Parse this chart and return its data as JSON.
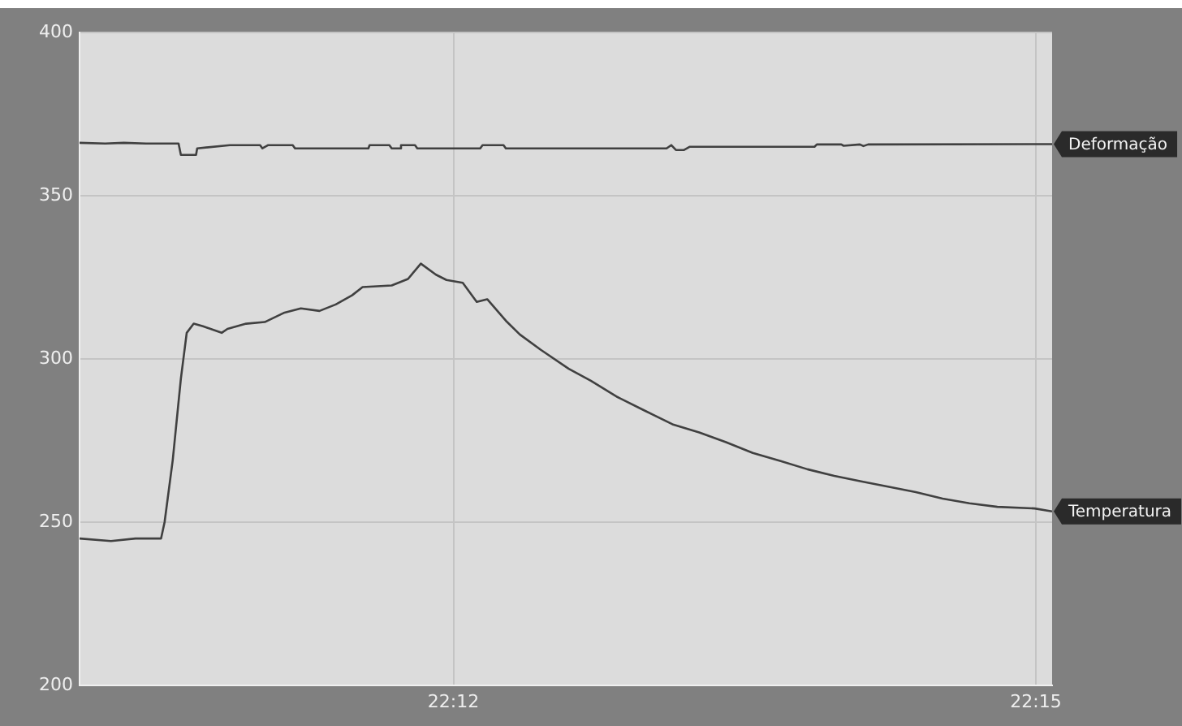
{
  "chart_data": {
    "type": "line",
    "xlim": [
      22.1679,
      22.2514
    ],
    "ylim": [
      200,
      400
    ],
    "xticks": [
      {
        "value": 22.2,
        "label": "22:12"
      },
      {
        "value": 22.25,
        "label": "22:15"
      }
    ],
    "yticks": [
      200,
      250,
      300,
      350,
      400
    ],
    "grid": true,
    "legend": false,
    "marker": "none",
    "line_style": "solid",
    "series": [
      {
        "name": "Deformação",
        "color": "#404040",
        "x": [
          22.1679,
          22.1701,
          22.1717,
          22.1736,
          22.1764,
          22.1766,
          22.1779,
          22.178,
          22.1808,
          22.1834,
          22.1836,
          22.1841,
          22.1862,
          22.1864,
          22.1927,
          22.1928,
          22.1945,
          22.1947,
          22.1954,
          22.1955,
          22.1967,
          22.1969,
          22.2023,
          22.2025,
          22.2043,
          22.2045,
          22.2183,
          22.2187,
          22.2191,
          22.2198,
          22.2203,
          22.231,
          22.2312,
          22.2333,
          22.2335,
          22.2349,
          22.2352,
          22.2356,
          22.2514
        ],
        "values": [
          366.2,
          366,
          366.2,
          366,
          366,
          362.5,
          362.5,
          364.5,
          365.5,
          365.5,
          364.5,
          365.5,
          365.5,
          364.5,
          364.5,
          365.5,
          365.5,
          364.5,
          364.5,
          365.5,
          365.5,
          364.5,
          364.5,
          365.5,
          365.5,
          364.5,
          364.5,
          365.5,
          364,
          364,
          365,
          365,
          365.7,
          365.7,
          365.3,
          365.7,
          365.2,
          365.7,
          365.8
        ]
      },
      {
        "name": "Temperatura",
        "color": "#404040",
        "x": [
          22.1679,
          22.1706,
          22.1727,
          22.1749,
          22.1752,
          22.1759,
          22.1766,
          22.1771,
          22.1777,
          22.1785,
          22.1801,
          22.1806,
          22.1822,
          22.1838,
          22.1855,
          22.1869,
          22.1885,
          22.1899,
          22.1913,
          22.1922,
          22.1947,
          22.1961,
          22.1972,
          22.1985,
          22.1994,
          22.2008,
          22.202,
          22.2029,
          22.2045,
          22.2057,
          22.2075,
          22.2099,
          22.2118,
          22.2141,
          22.2164,
          22.2188,
          22.2211,
          22.2234,
          22.2257,
          22.2281,
          22.2304,
          22.2327,
          22.235,
          22.2374,
          22.2397,
          22.242,
          22.2443,
          22.2467,
          22.2499,
          22.2514
        ],
        "values": [
          245,
          244.2,
          245,
          245,
          250,
          269,
          294,
          308,
          310.8,
          310,
          308,
          309.2,
          310.8,
          311.3,
          314.2,
          315.5,
          314.7,
          316.7,
          319.5,
          322,
          322.5,
          324.5,
          329.2,
          325.8,
          324.2,
          323.3,
          317.5,
          318.3,
          311.7,
          307.5,
          302.8,
          297,
          293.3,
          288.3,
          284.2,
          280,
          277.5,
          274.5,
          271.2,
          268.7,
          266.2,
          264.2,
          262.5,
          260.8,
          259.2,
          257.2,
          255.8,
          254.7,
          254.2,
          253.3
        ]
      }
    ]
  }
}
